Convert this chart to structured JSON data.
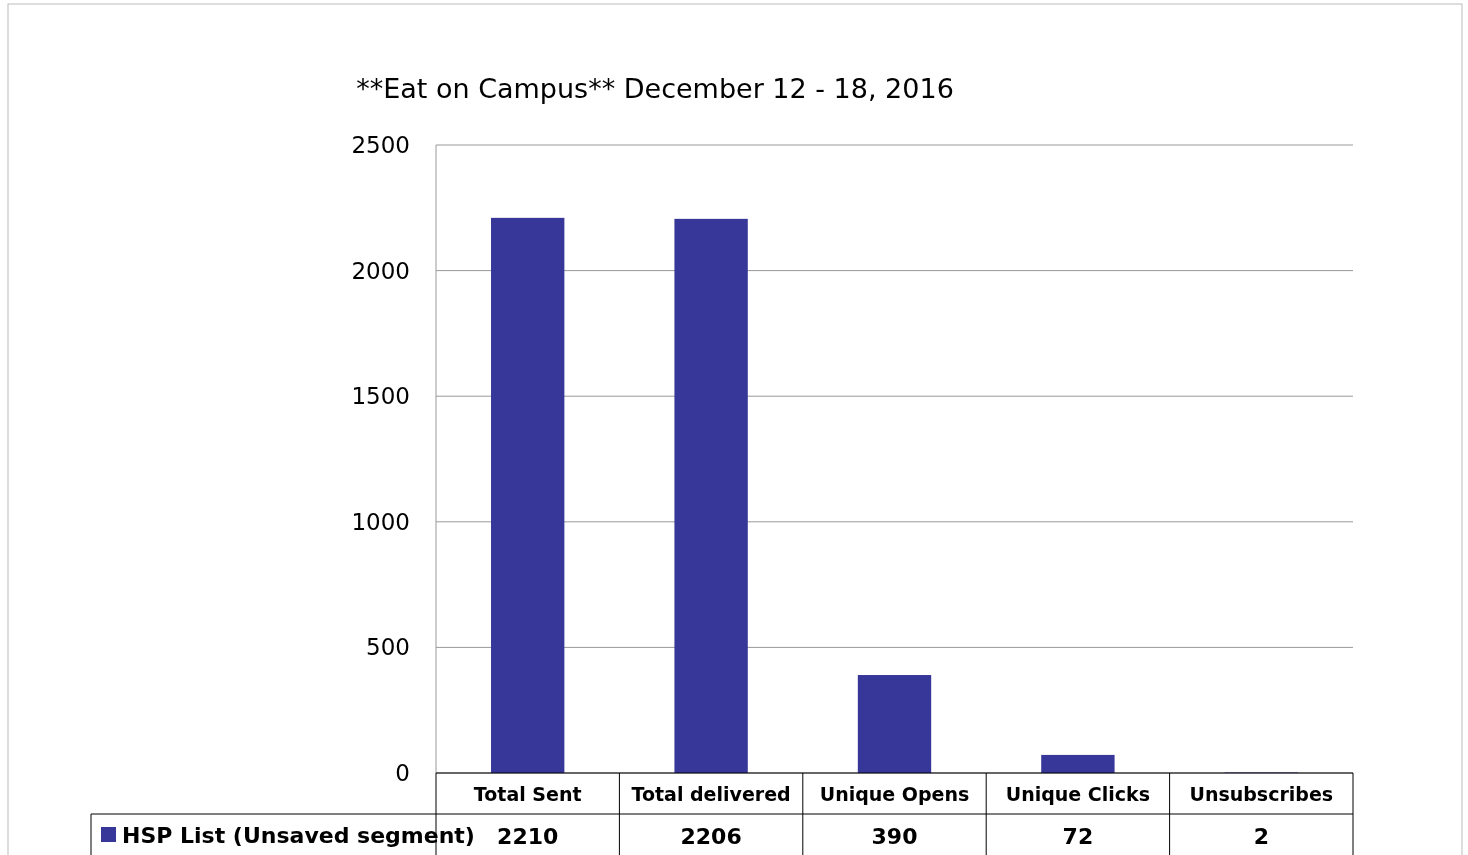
{
  "chart_data": {
    "type": "bar",
    "title": "**Eat on Campus** December 12 - 18, 2016",
    "categories": [
      "Total Sent",
      "Total delivered",
      "Unique Opens",
      "Unique Clicks",
      "Unsubscribes"
    ],
    "series": [
      {
        "name": "HSP List (Unsaved segment)",
        "color": "#373699",
        "values": [
          2210,
          2206,
          390,
          72,
          2
        ]
      }
    ],
    "ylim": [
      0,
      2500
    ],
    "yticks": [
      0,
      500,
      1000,
      1500,
      2000,
      2500
    ],
    "grid": "y",
    "legend": "bottom",
    "data_labels": true
  }
}
